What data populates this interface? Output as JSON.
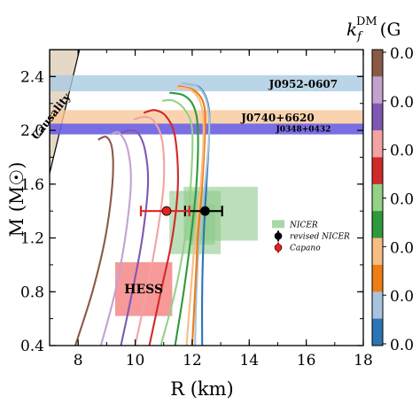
{
  "chart_data": {
    "type": "line",
    "xlabel": "R (km)",
    "ylabel": "M (M☉)",
    "xlim": [
      7,
      18
    ],
    "ylim": [
      0.4,
      2.6
    ],
    "xticks": [
      "8",
      "10",
      "12",
      "14",
      "16",
      "18"
    ],
    "yticks": [
      "0.4",
      "0.8",
      "1.2",
      "1.6",
      "2.0",
      "2.4"
    ],
    "colorbar": {
      "label": "k_f^DM (G",
      "tick_labels": [
        "0.0",
        "0.0",
        "0.0",
        "0.0",
        "0.0",
        "0.0",
        "0.0"
      ],
      "colors": [
        "#8b5a47",
        "#c4a2cf",
        "#7e58b3",
        "#f4a3a2",
        "#cf2a28",
        "#95d186",
        "#2e9a3b",
        "#f7bd84",
        "#ef7d14",
        "#a8c3dd",
        "#2b74b5"
      ]
    },
    "causality": {
      "label": "Causality",
      "polygon": [
        [
          7,
          1.68
        ],
        [
          7,
          2.6
        ],
        [
          8.05,
          2.6
        ]
      ]
    },
    "bands": [
      {
        "label": "J0952-0607",
        "ymin": 2.29,
        "ymax": 2.41,
        "color": "#aacbe2"
      },
      {
        "label": "J0740+6620",
        "ymin": 2.05,
        "ymax": 2.15,
        "color": "#f8c89a"
      },
      {
        "label": "J0348+0432",
        "ymin": 1.97,
        "ymax": 2.05,
        "color": "#6b5ee0"
      }
    ],
    "regions": [
      {
        "label": "NICER",
        "color": "#8fc98a",
        "boxes": [
          [
            11.2,
            13.0,
            1.08,
            1.55
          ],
          [
            11.7,
            14.3,
            1.18,
            1.58
          ],
          [
            11.9,
            12.8,
            1.15,
            1.45
          ]
        ]
      },
      {
        "label": "HESS",
        "color": "#f69392",
        "boxes": [
          [
            9.3,
            11.3,
            0.62,
            1.02
          ]
        ]
      }
    ],
    "points": [
      {
        "label": "revised NICER",
        "x": 12.45,
        "y": 1.4,
        "xerr": [
          0.7,
          0.6
        ],
        "color": "#000000"
      },
      {
        "label": "Capano",
        "x": 11.1,
        "y": 1.4,
        "xerr": [
          0.9,
          0.8
        ],
        "color": "#e32020"
      }
    ],
    "legend": {
      "entries": [
        "NICER",
        "revised NICER",
        "Capano"
      ],
      "position": "right"
    },
    "series": [
      {
        "color": "#2b74b5",
        "points": [
          [
            12.35,
            0.4
          ],
          [
            12.35,
            0.8
          ],
          [
            12.4,
            1.2
          ],
          [
            12.5,
            1.6
          ],
          [
            12.6,
            2.0
          ],
          [
            12.55,
            2.2
          ],
          [
            12.25,
            2.32
          ],
          [
            11.7,
            2.35
          ]
        ]
      },
      {
        "color": "#a8c3dd",
        "points": [
          [
            12.1,
            0.4
          ],
          [
            12.15,
            0.8
          ],
          [
            12.25,
            1.2
          ],
          [
            12.45,
            1.6
          ],
          [
            12.6,
            2.0
          ],
          [
            12.5,
            2.22
          ],
          [
            12.15,
            2.33
          ],
          [
            11.6,
            2.35
          ]
        ]
      },
      {
        "color": "#ef7d14",
        "points": [
          [
            12.0,
            0.4
          ],
          [
            12.1,
            0.8
          ],
          [
            12.2,
            1.2
          ],
          [
            12.35,
            1.6
          ],
          [
            12.45,
            2.0
          ],
          [
            12.4,
            2.2
          ],
          [
            12.05,
            2.3
          ],
          [
            11.5,
            2.33
          ]
        ]
      },
      {
        "color": "#f7bd84",
        "points": [
          [
            11.8,
            0.4
          ],
          [
            11.95,
            0.8
          ],
          [
            12.1,
            1.2
          ],
          [
            12.3,
            1.6
          ],
          [
            12.4,
            2.0
          ],
          [
            12.3,
            2.2
          ],
          [
            11.95,
            2.3
          ],
          [
            11.45,
            2.32
          ]
        ]
      },
      {
        "color": "#2e9a3b",
        "points": [
          [
            11.4,
            0.4
          ],
          [
            11.7,
            0.8
          ],
          [
            11.95,
            1.2
          ],
          [
            12.15,
            1.6
          ],
          [
            12.2,
            2.0
          ],
          [
            12.05,
            2.18
          ],
          [
            11.7,
            2.26
          ],
          [
            11.2,
            2.28
          ]
        ]
      },
      {
        "color": "#95d186",
        "points": [
          [
            10.9,
            0.4
          ],
          [
            11.4,
            0.8
          ],
          [
            11.75,
            1.2
          ],
          [
            11.95,
            1.6
          ],
          [
            12.0,
            2.0
          ],
          [
            11.75,
            2.15
          ],
          [
            11.35,
            2.22
          ],
          [
            10.95,
            2.22
          ]
        ]
      },
      {
        "color": "#cf2a28",
        "points": [
          [
            10.5,
            0.4
          ],
          [
            10.9,
            0.8
          ],
          [
            11.3,
            1.2
          ],
          [
            11.5,
            1.6
          ],
          [
            11.4,
            1.95
          ],
          [
            11.1,
            2.1
          ],
          [
            10.7,
            2.15
          ],
          [
            10.3,
            2.13
          ]
        ]
      },
      {
        "color": "#f4a3a2",
        "points": [
          [
            10.0,
            0.4
          ],
          [
            10.4,
            0.8
          ],
          [
            10.75,
            1.2
          ],
          [
            11.0,
            1.6
          ],
          [
            10.95,
            1.92
          ],
          [
            10.65,
            2.07
          ],
          [
            10.3,
            2.1
          ],
          [
            9.95,
            2.08
          ]
        ]
      },
      {
        "color": "#7e58b3",
        "points": [
          [
            9.5,
            0.4
          ],
          [
            9.9,
            0.8
          ],
          [
            10.25,
            1.2
          ],
          [
            10.45,
            1.6
          ],
          [
            10.35,
            1.85
          ],
          [
            10.1,
            1.98
          ],
          [
            9.8,
            2.0
          ],
          [
            9.5,
            1.98
          ]
        ]
      },
      {
        "color": "#c4a2cf",
        "points": [
          [
            8.8,
            0.4
          ],
          [
            9.3,
            0.8
          ],
          [
            9.65,
            1.2
          ],
          [
            9.85,
            1.6
          ],
          [
            9.75,
            1.85
          ],
          [
            9.45,
            1.98
          ],
          [
            9.15,
            1.97
          ]
        ]
      },
      {
        "color": "#8b5a47",
        "points": [
          [
            7.9,
            0.4
          ],
          [
            8.5,
            0.8
          ],
          [
            8.95,
            1.2
          ],
          [
            9.2,
            1.6
          ],
          [
            9.2,
            1.85
          ],
          [
            9.0,
            1.95
          ],
          [
            8.7,
            1.93
          ]
        ]
      }
    ]
  }
}
